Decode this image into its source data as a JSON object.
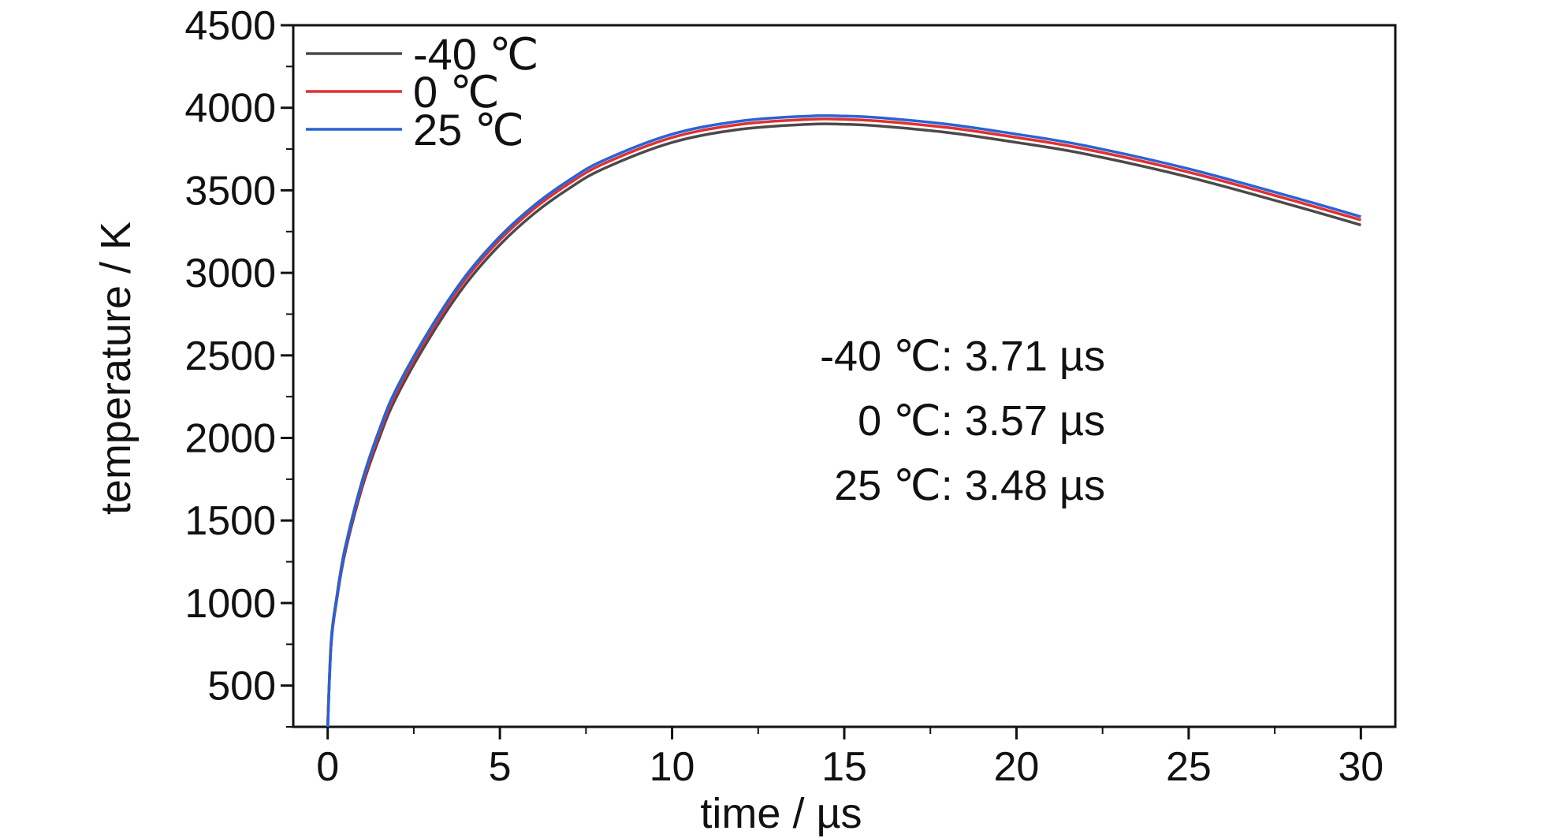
{
  "chart_data": {
    "type": "line",
    "title": "",
    "xlabel": "time / µs",
    "ylabel": "temperature / K",
    "xlim": [
      -1,
      31
    ],
    "ylim": [
      250,
      4500
    ],
    "xticks": [
      0,
      5,
      10,
      15,
      20,
      25,
      30
    ],
    "yticks": [
      500,
      1000,
      1500,
      2000,
      2500,
      3000,
      3500,
      4000,
      4500
    ],
    "grid": false,
    "legend": "top-left",
    "series": [
      {
        "name": "-40 ℃",
        "color": "#4a4a4a",
        "x": [
          0,
          0.1,
          0.25,
          0.5,
          1,
          1.5,
          2,
          3,
          4,
          5,
          6,
          7,
          8,
          10,
          12,
          14,
          15,
          16,
          18,
          20,
          22,
          25,
          28,
          30
        ],
        "y": [
          250,
          750,
          1000,
          1300,
          1700,
          2000,
          2250,
          2620,
          2930,
          3170,
          3360,
          3510,
          3630,
          3790,
          3870,
          3900,
          3900,
          3890,
          3850,
          3790,
          3720,
          3580,
          3410,
          3290
        ]
      },
      {
        "name": "0 ℃",
        "color": "#e03030",
        "x": [
          0,
          0.1,
          0.25,
          0.5,
          1,
          1.5,
          2,
          3,
          4,
          5,
          6,
          7,
          8,
          10,
          12,
          14,
          15,
          16,
          18,
          20,
          22,
          25,
          28,
          30
        ],
        "y": [
          250,
          760,
          1010,
          1320,
          1720,
          2030,
          2280,
          2650,
          2960,
          3200,
          3390,
          3540,
          3660,
          3820,
          3900,
          3930,
          3930,
          3920,
          3880,
          3820,
          3750,
          3610,
          3440,
          3320
        ]
      },
      {
        "name": "25 ℃",
        "color": "#2a62d4",
        "x": [
          0,
          0.1,
          0.25,
          0.5,
          1,
          1.5,
          2,
          3,
          4,
          5,
          6,
          7,
          8,
          10,
          12,
          14,
          15,
          16,
          18,
          20,
          22,
          25,
          28,
          30
        ],
        "y": [
          250,
          770,
          1020,
          1330,
          1740,
          2050,
          2300,
          2670,
          2980,
          3220,
          3410,
          3560,
          3680,
          3840,
          3920,
          3950,
          3950,
          3940,
          3900,
          3840,
          3770,
          3630,
          3460,
          3340
        ]
      }
    ],
    "annotations": [
      "-40 ℃: 3.71 µs",
      "0 ℃: 3.57 µs",
      "25 ℃: 3.48 µs"
    ]
  }
}
